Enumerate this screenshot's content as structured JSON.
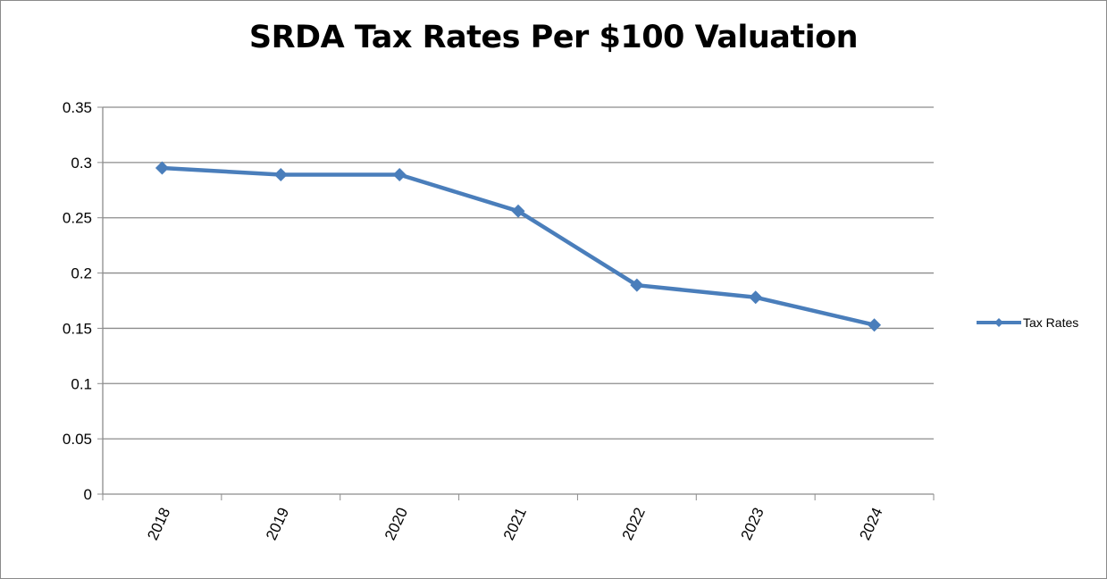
{
  "chart_data": {
    "type": "line",
    "title": "SRDA Tax Rates Per $100 Valuation",
    "xlabel": "",
    "ylabel": "",
    "categories": [
      "2018",
      "2019",
      "2020",
      "2021",
      "2022",
      "2023",
      "2024"
    ],
    "series": [
      {
        "name": "Tax Rates",
        "values": [
          0.295,
          0.289,
          0.289,
          0.256,
          0.189,
          0.178,
          0.153
        ],
        "color": "#4a7ebb",
        "marker": "diamond"
      }
    ],
    "ylim": [
      0,
      0.35
    ],
    "yticks": [
      0,
      0.05,
      0.1,
      0.15,
      0.2,
      0.25,
      0.3,
      0.35
    ],
    "ytick_labels": [
      "0",
      "0.05",
      "0.1",
      "0.15",
      "0.2",
      "0.25",
      "0.3",
      "0.35"
    ],
    "grid": "horizontal",
    "legend": "right",
    "xtick_rotation": "-65deg"
  }
}
